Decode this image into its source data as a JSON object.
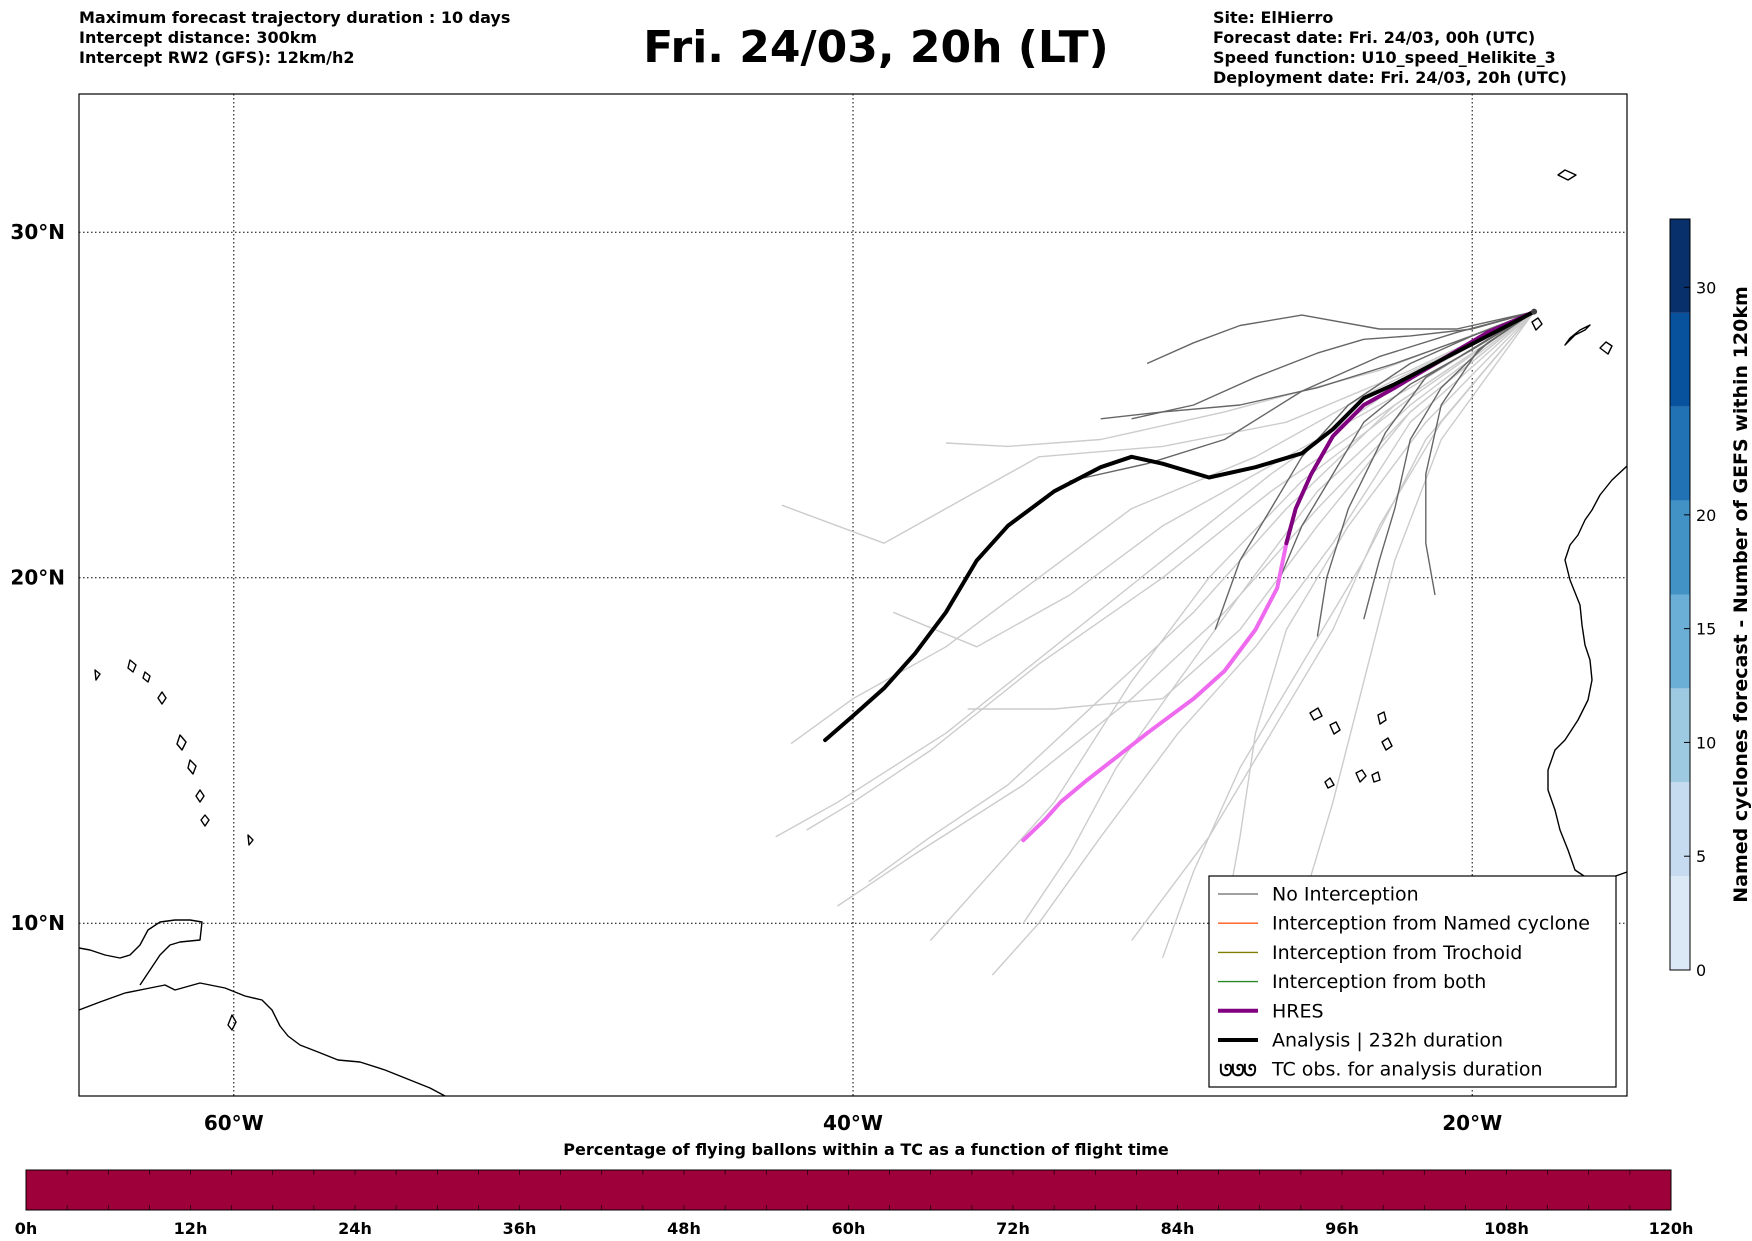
{
  "header": {
    "left_lines": [
      "Maximum forecast trajectory duration : 10 days",
      "Intercept distance: 300km",
      "Intercept RW2 (GFS):  12km/h2"
    ],
    "title": "Fri. 24/03, 20h (LT)",
    "right_lines": [
      "Site: ElHierro",
      "Forecast date: Fri. 24/03, 00h (UTC)",
      "Speed function: U10_speed_Helikite_3",
      "Deployment date: Fri. 24/03, 20h (UTC)"
    ]
  },
  "map": {
    "lon_range": [
      -65,
      -15
    ],
    "lat_range": [
      5,
      34
    ],
    "lon_ticks": [
      {
        "value": -60,
        "label": "60°W"
      },
      {
        "value": -40,
        "label": "40°W"
      },
      {
        "value": -20,
        "label": "20°W"
      }
    ],
    "lat_ticks": [
      {
        "value": 30,
        "label": "30°N"
      },
      {
        "value": 20,
        "label": "20°N"
      },
      {
        "value": 10,
        "label": "10°N"
      }
    ],
    "grid": "dotted",
    "origin_site": {
      "lon": -18.0,
      "lat": 27.7
    }
  },
  "legend": {
    "position": "bottom-right",
    "items": [
      {
        "label": "No Interception",
        "color": "#808080"
      },
      {
        "label": "Interception from Named cyclone",
        "color": "#ff5a1a"
      },
      {
        "label": "Interception from Trochoid",
        "color": "#808000"
      },
      {
        "label": "Interception from both",
        "color": "#2a8a2a"
      },
      {
        "label": "HRES",
        "color": "#800080"
      },
      {
        "label": "Analysis | 232h duration",
        "color": "#000000"
      },
      {
        "label": "TC obs. for analysis duration",
        "color": "#000000",
        "icon": "cyclone-symbols-icon"
      }
    ]
  },
  "colorbar_right": {
    "label": "Named cyclones forecast - Number of GEFS within 120km",
    "range": [
      0,
      33
    ],
    "ticks": [
      "0",
      "5",
      "10",
      "15",
      "20",
      "30"
    ],
    "tick_values": [
      0,
      5,
      10,
      15,
      20,
      30
    ],
    "colors": [
      "#dbe9f6",
      "#c6dbef",
      "#9ecae1",
      "#6baed6",
      "#4292c6",
      "#2171b5",
      "#08519c",
      "#08306b"
    ]
  },
  "colorbar_bottom": {
    "title": "Percentage of flying ballons within a TC as a function of flight time",
    "ticks": [
      "0h",
      "12h",
      "24h",
      "36h",
      "48h",
      "60h",
      "72h",
      "84h",
      "96h",
      "108h",
      "120h"
    ],
    "tick_values": [
      0,
      12,
      24,
      36,
      48,
      60,
      72,
      84,
      96,
      108,
      120
    ],
    "color": "#9e003a"
  },
  "chart_data": {
    "type": "line",
    "x_unit": "degrees longitude",
    "y_unit": "degrees latitude",
    "series": [
      {
        "role": "analysis",
        "color": "#000000",
        "points": [
          [
            -18.0,
            27.7
          ],
          [
            -19.5,
            27.0
          ],
          [
            -21.0,
            26.3
          ],
          [
            -22.5,
            25.6
          ],
          [
            -23.5,
            25.2
          ],
          [
            -24.5,
            24.3
          ],
          [
            -25.5,
            23.6
          ],
          [
            -27.0,
            23.2
          ],
          [
            -28.5,
            22.9
          ],
          [
            -30.0,
            23.3
          ],
          [
            -31.0,
            23.5
          ],
          [
            -32.0,
            23.2
          ],
          [
            -33.5,
            22.5
          ],
          [
            -35.0,
            21.5
          ],
          [
            -36.0,
            20.5
          ],
          [
            -37.0,
            19.0
          ],
          [
            -38.0,
            17.8
          ],
          [
            -39.0,
            16.8
          ],
          [
            -40.0,
            16.0
          ],
          [
            -40.9,
            15.3
          ]
        ]
      },
      {
        "role": "hres",
        "color": "#800080",
        "points": [
          [
            -18.0,
            27.7
          ],
          [
            -19.5,
            27.1
          ],
          [
            -21.0,
            26.3
          ],
          [
            -22.5,
            25.5
          ],
          [
            -23.5,
            25.0
          ],
          [
            -24.5,
            24.1
          ],
          [
            -25.2,
            23.0
          ],
          [
            -25.7,
            22.0
          ],
          [
            -26.0,
            21.0
          ],
          [
            -26.3,
            19.7
          ],
          [
            -27.0,
            18.5
          ],
          [
            -28.0,
            17.3
          ],
          [
            -29.0,
            16.5
          ],
          [
            -30.5,
            15.5
          ],
          [
            -31.5,
            14.8
          ],
          [
            -32.5,
            14.1
          ],
          [
            -33.3,
            13.5
          ],
          [
            -33.8,
            13.0
          ],
          [
            -34.5,
            12.4
          ]
        ]
      },
      {
        "role": "ensemble",
        "color": "#666666",
        "points": [
          [
            -18.0,
            27.7
          ],
          [
            -20.0,
            27.2
          ],
          [
            -22.0,
            27.0
          ],
          [
            -23.5,
            26.9
          ],
          [
            -25.0,
            26.5
          ],
          [
            -27.0,
            25.8
          ],
          [
            -29.0,
            25.0
          ],
          [
            -31.0,
            24.6
          ]
        ]
      },
      {
        "role": "ensemble",
        "color": "#666666",
        "points": [
          [
            -18.0,
            27.7
          ],
          [
            -20.0,
            27.0
          ],
          [
            -22.0,
            26.2
          ],
          [
            -24.0,
            25.0
          ],
          [
            -25.5,
            23.5
          ],
          [
            -26.5,
            22.0
          ],
          [
            -27.5,
            20.5
          ],
          [
            -28.3,
            18.5
          ]
        ]
      },
      {
        "role": "ensemble",
        "color": "#666666",
        "points": [
          [
            -18.0,
            27.7
          ],
          [
            -19.5,
            26.8
          ],
          [
            -21.0,
            25.5
          ],
          [
            -22.0,
            24.0
          ],
          [
            -22.5,
            22.0
          ],
          [
            -23.0,
            20.5
          ],
          [
            -23.5,
            18.8
          ]
        ]
      },
      {
        "role": "ensemble",
        "color": "#666666",
        "points": [
          [
            -18.0,
            27.7
          ],
          [
            -19.5,
            26.9
          ],
          [
            -21.5,
            25.8
          ],
          [
            -22.8,
            24.2
          ],
          [
            -24.0,
            22.0
          ],
          [
            -24.7,
            20.0
          ],
          [
            -25.0,
            18.3
          ]
        ]
      },
      {
        "role": "ensemble",
        "color": "#666666",
        "points": [
          [
            -18.0,
            27.7
          ],
          [
            -19.8,
            26.6
          ],
          [
            -21.0,
            25.0
          ],
          [
            -21.5,
            23.0
          ],
          [
            -21.5,
            21.0
          ],
          [
            -21.2,
            19.5
          ]
        ]
      },
      {
        "role": "ensemble",
        "color": "#666666",
        "points": [
          [
            -18.0,
            27.7
          ],
          [
            -20.5,
            27.1
          ],
          [
            -23.0,
            26.4
          ],
          [
            -25.5,
            25.4
          ],
          [
            -28.0,
            24.0
          ],
          [
            -30.5,
            23.3
          ],
          [
            -33.0,
            22.8
          ]
        ]
      },
      {
        "role": "ensemble",
        "color": "#666666",
        "points": [
          [
            -18.0,
            27.7
          ],
          [
            -20.0,
            27.0
          ],
          [
            -22.5,
            26.2
          ],
          [
            -25.0,
            25.5
          ],
          [
            -27.5,
            25.0
          ],
          [
            -30.0,
            24.8
          ],
          [
            -32.0,
            24.6
          ]
        ]
      },
      {
        "role": "ensemble",
        "color": "#666666",
        "points": [
          [
            -18.0,
            27.7
          ],
          [
            -20.5,
            27.2
          ],
          [
            -23.0,
            27.2
          ],
          [
            -25.5,
            27.6
          ],
          [
            -27.5,
            27.3
          ],
          [
            -29.0,
            26.8
          ],
          [
            -30.5,
            26.2
          ]
        ]
      },
      {
        "role": "ensemble",
        "color": "#666666",
        "points": [
          [
            -18.0,
            27.7
          ],
          [
            -20.0,
            26.6
          ],
          [
            -22.0,
            25.6
          ],
          [
            -23.5,
            24.5
          ],
          [
            -24.5,
            23.0
          ],
          [
            -25.5,
            21.5
          ],
          [
            -26.3,
            19.8
          ]
        ]
      },
      {
        "role": "ensemble",
        "color": "#cccccc",
        "points": [
          [
            -18.0,
            27.7
          ],
          [
            -22.0,
            26.0
          ],
          [
            -26.0,
            24.5
          ],
          [
            -30.0,
            23.8
          ],
          [
            -34.0,
            23.5
          ],
          [
            -37.0,
            22.0
          ],
          [
            -39.0,
            21.0
          ],
          [
            -42.3,
            22.1
          ]
        ]
      },
      {
        "role": "ensemble",
        "color": "#cccccc",
        "points": [
          [
            -18.0,
            27.7
          ],
          [
            -23.0,
            25.5
          ],
          [
            -27.0,
            23.5
          ],
          [
            -31.0,
            22.0
          ],
          [
            -34.0,
            20.0
          ],
          [
            -37.0,
            18.0
          ],
          [
            -40.0,
            16.5
          ],
          [
            -42.0,
            15.2
          ]
        ]
      },
      {
        "role": "ensemble",
        "color": "#cccccc",
        "points": [
          [
            -18.0,
            27.7
          ],
          [
            -22.5,
            25.0
          ],
          [
            -26.0,
            22.0
          ],
          [
            -29.0,
            19.0
          ],
          [
            -32.0,
            16.5
          ],
          [
            -35.0,
            14.0
          ],
          [
            -37.5,
            12.5
          ],
          [
            -39.5,
            11.2
          ]
        ]
      },
      {
        "role": "ensemble",
        "color": "#cccccc",
        "points": [
          [
            -18.0,
            27.7
          ],
          [
            -22.0,
            24.5
          ],
          [
            -24.5,
            21.0
          ],
          [
            -27.0,
            18.0
          ],
          [
            -29.5,
            15.5
          ],
          [
            -32.0,
            12.5
          ],
          [
            -34.0,
            10.0
          ],
          [
            -35.5,
            8.5
          ]
        ]
      },
      {
        "role": "ensemble",
        "color": "#cccccc",
        "points": [
          [
            -18.0,
            27.7
          ],
          [
            -21.5,
            24.0
          ],
          [
            -23.5,
            20.5
          ],
          [
            -25.5,
            17.5
          ],
          [
            -27.5,
            14.5
          ],
          [
            -29.0,
            11.5
          ],
          [
            -30.0,
            9.0
          ]
        ]
      },
      {
        "role": "ensemble",
        "color": "#cccccc",
        "points": [
          [
            -18.0,
            27.7
          ],
          [
            -22.0,
            24.8
          ],
          [
            -25.0,
            22.0
          ],
          [
            -28.0,
            19.0
          ],
          [
            -31.0,
            16.5
          ],
          [
            -34.5,
            14.0
          ],
          [
            -38.0,
            12.0
          ],
          [
            -40.5,
            10.5
          ]
        ]
      },
      {
        "role": "ensemble",
        "color": "#cccccc",
        "points": [
          [
            -18.0,
            27.7
          ],
          [
            -21.0,
            24.0
          ],
          [
            -22.5,
            20.5
          ],
          [
            -23.5,
            17.0
          ],
          [
            -24.5,
            13.5
          ],
          [
            -25.5,
            10.5
          ]
        ]
      },
      {
        "role": "ensemble",
        "color": "#cccccc",
        "points": [
          [
            -18.0,
            27.7
          ],
          [
            -22.5,
            25.5
          ],
          [
            -26.5,
            23.0
          ],
          [
            -30.0,
            20.5
          ],
          [
            -33.5,
            18.0
          ],
          [
            -37.0,
            15.5
          ],
          [
            -40.5,
            13.5
          ],
          [
            -42.5,
            12.5
          ]
        ]
      },
      {
        "role": "ensemble",
        "color": "#cccccc",
        "points": [
          [
            -18.0,
            27.7
          ],
          [
            -23.0,
            26.0
          ],
          [
            -28.0,
            24.8
          ],
          [
            -32.0,
            24.0
          ],
          [
            -35.0,
            23.8
          ],
          [
            -37.0,
            23.9
          ]
        ]
      },
      {
        "role": "ensemble",
        "color": "#cccccc",
        "points": [
          [
            -18.0,
            27.7
          ],
          [
            -22.0,
            25.0
          ],
          [
            -25.0,
            22.5
          ],
          [
            -27.5,
            19.5
          ],
          [
            -29.5,
            17.0
          ],
          [
            -31.5,
            14.5
          ],
          [
            -33.0,
            12.0
          ],
          [
            -34.5,
            10.0
          ]
        ]
      },
      {
        "role": "ensemble",
        "color": "#cccccc",
        "points": [
          [
            -18.0,
            27.7
          ],
          [
            -21.5,
            24.5
          ],
          [
            -24.0,
            21.5
          ],
          [
            -26.0,
            18.5
          ],
          [
            -27.0,
            15.5
          ],
          [
            -27.5,
            12.5
          ],
          [
            -28.0,
            10.0
          ]
        ]
      },
      {
        "role": "ensemble",
        "color": "#cccccc",
        "points": [
          [
            -18.0,
            27.7
          ],
          [
            -22.0,
            25.5
          ],
          [
            -26.0,
            23.5
          ],
          [
            -30.0,
            21.5
          ],
          [
            -33.0,
            19.5
          ],
          [
            -36.0,
            18.0
          ],
          [
            -38.7,
            19.0
          ]
        ]
      },
      {
        "role": "ensemble",
        "color": "#cccccc",
        "points": [
          [
            -18.0,
            27.7
          ],
          [
            -22.0,
            24.8
          ],
          [
            -25.0,
            21.5
          ],
          [
            -27.5,
            18.5
          ],
          [
            -30.0,
            16.5
          ],
          [
            -33.5,
            16.2
          ],
          [
            -36.3,
            16.2
          ]
        ]
      },
      {
        "role": "ensemble",
        "color": "#cccccc",
        "points": [
          [
            -18.0,
            27.7
          ],
          [
            -22.5,
            25.0
          ],
          [
            -26.5,
            22.5
          ],
          [
            -30.0,
            20.0
          ],
          [
            -34.0,
            17.5
          ],
          [
            -37.5,
            15.0
          ],
          [
            -40.0,
            13.5
          ],
          [
            -41.5,
            12.7
          ]
        ]
      },
      {
        "role": "ensemble",
        "color": "#cccccc",
        "points": [
          [
            -18.0,
            27.7
          ],
          [
            -21.0,
            24.5
          ],
          [
            -23.0,
            21.5
          ],
          [
            -24.5,
            18.5
          ],
          [
            -26.5,
            15.5
          ],
          [
            -28.5,
            12.5
          ],
          [
            -31.0,
            9.5
          ]
        ]
      },
      {
        "role": "ensemble",
        "color": "#cccccc",
        "points": [
          [
            -18.0,
            27.7
          ],
          [
            -22.0,
            25.2
          ],
          [
            -25.5,
            22.8
          ],
          [
            -28.5,
            20.0
          ],
          [
            -31.0,
            17.0
          ],
          [
            -33.5,
            13.5
          ],
          [
            -36.0,
            11.0
          ],
          [
            -37.5,
            9.5
          ]
        ]
      }
    ]
  }
}
